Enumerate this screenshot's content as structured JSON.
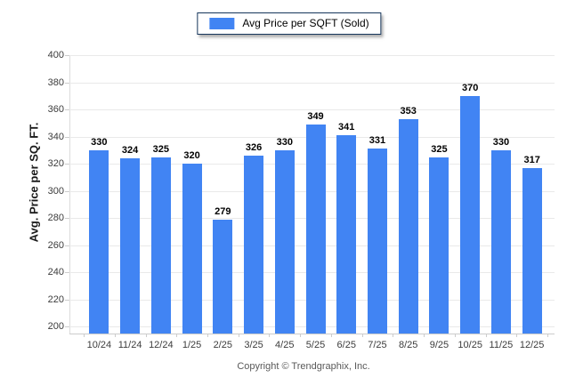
{
  "chart_data": {
    "type": "bar",
    "legend_label": "Avg Price per SQFT (Sold)",
    "categories": [
      "10/24",
      "11/24",
      "12/24",
      "1/25",
      "2/25",
      "3/25",
      "4/25",
      "5/25",
      "6/25",
      "7/25",
      "8/25",
      "9/25",
      "10/25",
      "11/25",
      "12/25"
    ],
    "series": [
      {
        "name": "Avg Price per SQFT (Sold)",
        "values": [
          330,
          324,
          325,
          320,
          279,
          326,
          330,
          349,
          341,
          331,
          353,
          325,
          370,
          330,
          317
        ]
      }
    ],
    "title": "",
    "xlabel": "",
    "ylabel": "Avg. Price per SQ. FT.",
    "ylim": [
      200,
      400
    ],
    "yticks": [
      200,
      220,
      240,
      260,
      280,
      300,
      320,
      340,
      360,
      380,
      400
    ],
    "grid": "horizontal",
    "legend_position": "top-center",
    "value_labels": true,
    "colors": {
      "bar": "#4184f3",
      "gridline": "#e9e9e9",
      "legend_border": "#16365c",
      "value_label": "#000000",
      "tick_label": "#3c3c3c",
      "footer_text": "#595959"
    }
  },
  "footer": {
    "copyright": "Copyright © Trendgraphix, Inc."
  }
}
